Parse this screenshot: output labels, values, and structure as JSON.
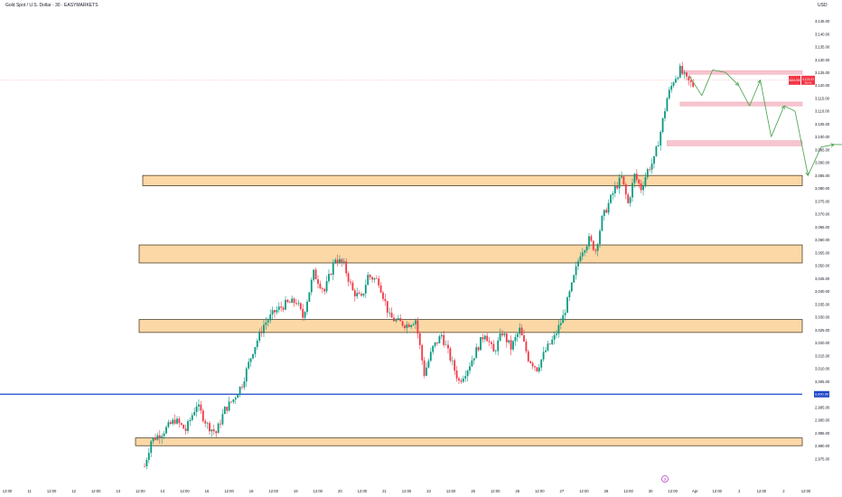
{
  "header": {
    "title": "Gold Spot / U.S. Dollar · 30 · EASYMARKETS",
    "currency": "USD"
  },
  "colors": {
    "background": "#ffffff",
    "candle_up": "#089981",
    "candle_down": "#f23645",
    "zone_fill": "#fcd8a7",
    "zone_border": "#3a2a10",
    "target_fill": "#f7c5cf",
    "target_border": "#f0a8b6",
    "level_line": "#1e46c8",
    "arrow": "#43a047",
    "badge": "#f23645",
    "axis_text": "#131722",
    "event_marker": "#b23fc2"
  },
  "chart_data": {
    "type": "candlestick",
    "timeframe": "30",
    "ylim": [
      2972,
      3150
    ],
    "y_ticks": [
      "3,145.00",
      "3,140.00",
      "3,135.00",
      "3,130.00",
      "3,125.00",
      "3,120.00",
      "3,115.00",
      "3,110.00",
      "3,105.00",
      "3,100.00",
      "3,095.00",
      "3,090.00",
      "3,085.00",
      "3,080.00",
      "3,075.00",
      "3,070.00",
      "3,065.00",
      "3,060.00",
      "3,055.00",
      "3,050.00",
      "3,045.00",
      "3,040.00",
      "3,035.00",
      "3,030.00",
      "3,025.00",
      "3,020.00",
      "3,015.00",
      "3,010.00",
      "3,005.00",
      "3,000.00",
      "2,995.00",
      "2,990.00",
      "2,985.00",
      "2,980.00",
      "2,975.00"
    ],
    "x_ticks": [
      "12:00",
      "11",
      "12:00",
      "12",
      "12:00",
      "13",
      "12:00",
      "14",
      "12:00",
      "16",
      "12:00",
      "18",
      "12:00",
      "19",
      "12:00",
      "20",
      "12:00",
      "21",
      "12:00",
      "23",
      "12:00",
      "25",
      "12:00",
      "26",
      "12:00",
      "27",
      "12:00",
      "28",
      "12:00",
      "30",
      "12:00",
      "Apr",
      "12:00",
      "2",
      "12:00",
      "2",
      "12:00"
    ],
    "price_path": [
      [
        0,
        2972
      ],
      [
        3,
        2982
      ],
      [
        8,
        2985
      ],
      [
        14,
        2990
      ],
      [
        19,
        2986
      ],
      [
        24,
        2996
      ],
      [
        29,
        2988
      ],
      [
        33,
        2985
      ],
      [
        37,
        2994
      ],
      [
        41,
        2998
      ],
      [
        45,
        3004
      ],
      [
        50,
        3017
      ],
      [
        55,
        3027
      ],
      [
        60,
        3032
      ],
      [
        65,
        3035
      ],
      [
        70,
        3036
      ],
      [
        73,
        3030
      ],
      [
        78,
        3047
      ],
      [
        83,
        3040
      ],
      [
        88,
        3053
      ],
      [
        92,
        3050
      ],
      [
        96,
        3040
      ],
      [
        100,
        3037
      ],
      [
        103,
        3046
      ],
      [
        108,
        3044
      ],
      [
        113,
        3030
      ],
      [
        117,
        3028
      ],
      [
        121,
        3027
      ],
      [
        125,
        3029
      ],
      [
        129,
        3008
      ],
      [
        133,
        3018
      ],
      [
        137,
        3023
      ],
      [
        141,
        3014
      ],
      [
        145,
        3005
      ],
      [
        149,
        3010
      ],
      [
        153,
        3017
      ],
      [
        157,
        3024
      ],
      [
        161,
        3016
      ],
      [
        165,
        3024
      ],
      [
        169,
        3018
      ],
      [
        173,
        3025
      ],
      [
        177,
        3014
      ],
      [
        181,
        3010
      ],
      [
        185,
        3017
      ],
      [
        189,
        3022
      ],
      [
        193,
        3030
      ],
      [
        197,
        3042
      ],
      [
        201,
        3055
      ],
      [
        205,
        3060
      ],
      [
        208,
        3056
      ],
      [
        211,
        3068
      ],
      [
        214,
        3074
      ],
      [
        217,
        3080
      ],
      [
        220,
        3084
      ],
      [
        223,
        3074
      ],
      [
        226,
        3085
      ],
      [
        229,
        3080
      ],
      [
        232,
        3087
      ],
      [
        235,
        3091
      ],
      [
        238,
        3102
      ],
      [
        241,
        3115
      ],
      [
        244,
        3122
      ],
      [
        247,
        3126
      ],
      [
        250,
        3122
      ],
      [
        253,
        3120
      ]
    ],
    "last_price": "3,121.97",
    "price_badge": "3,121.97",
    "price_badge_symbol": "XAUUSD",
    "price_badge_sub": "06:41",
    "zones": [
      {
        "from": 3081,
        "to": 3085
      },
      {
        "from": 3051,
        "to": 3058
      },
      {
        "from": 3024,
        "to": 3029
      },
      {
        "from": 2980,
        "to": 2983
      }
    ],
    "targets": [
      {
        "from": 3124.3,
        "to": 3125.7,
        "start_bar": 247
      },
      {
        "from": 3112,
        "to": 3113.5,
        "start_bar": 247
      },
      {
        "from": 3096.5,
        "to": 3098.5,
        "start_bar": 241
      }
    ],
    "horizontal_level": 3000,
    "horizontal_level_label": "3,000.00",
    "projection_path": [
      [
        251,
        3124
      ],
      [
        257,
        3116
      ],
      [
        262,
        3126
      ],
      [
        268,
        3125
      ],
      [
        274,
        3120
      ],
      [
        279,
        3112
      ],
      [
        284,
        3122
      ],
      [
        289,
        3100
      ],
      [
        295,
        3112
      ],
      [
        300,
        3110
      ],
      [
        306,
        3085
      ],
      [
        312,
        3096
      ],
      [
        318,
        3097
      ],
      [
        324,
        3097
      ],
      [
        330,
        3124
      ],
      [
        336,
        3148
      ]
    ],
    "event_marker": "3"
  }
}
